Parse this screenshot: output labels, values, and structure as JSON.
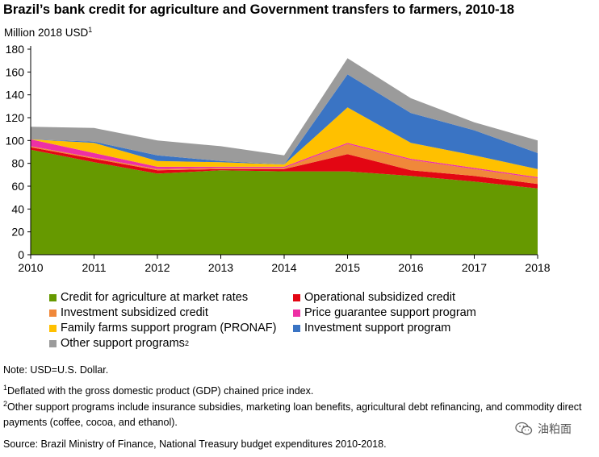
{
  "title": "Brazil’s bank credit for agriculture and Government transfers to farmers, 2010-18",
  "unit_label": "Million 2018 USD",
  "unit_sup": "1",
  "chart_data": {
    "type": "area",
    "stacked": true,
    "x": [
      2010,
      2011,
      2012,
      2013,
      2014,
      2015,
      2016,
      2017,
      2018
    ],
    "ylim": [
      0,
      180
    ],
    "yticks": [
      0,
      20,
      40,
      60,
      80,
      100,
      120,
      140,
      160,
      180
    ],
    "series": [
      {
        "name": "Credit for agriculture at market rates",
        "color": "#669900",
        "values": [
          92,
          81,
          71,
          74,
          73,
          73,
          69,
          64,
          58
        ]
      },
      {
        "name": "Operational subsidized credit",
        "color": "#e30613",
        "values": [
          2,
          3,
          3,
          1,
          2,
          15,
          5,
          5,
          4
        ]
      },
      {
        "name": "Investment subsidized credit",
        "color": "#f0883a",
        "values": [
          1,
          1,
          1,
          1,
          1,
          9,
          9,
          6,
          5
        ]
      },
      {
        "name": "Price guarantee support program",
        "color": "#ee2fa5",
        "values": [
          6,
          4,
          2,
          1,
          1,
          1,
          1,
          1,
          1
        ]
      },
      {
        "name": "Family farms support program (PRONAF)",
        "color": "#ffc000",
        "values": [
          0,
          9,
          5,
          4,
          2,
          31,
          14,
          11,
          7
        ]
      },
      {
        "name": "Investment support program",
        "color": "#3a74c4",
        "values": [
          0,
          1,
          5,
          1,
          0,
          29,
          26,
          22,
          14
        ]
      },
      {
        "name": "Other support programs",
        "sup": "2",
        "color": "#9b9b9b",
        "values": [
          11,
          12,
          13,
          13,
          8,
          14,
          13,
          7,
          11
        ]
      }
    ]
  },
  "notes": {
    "note": "Note: USD=U.S. Dollar.",
    "fn1_mark": "1",
    "fn1": "Deflated with the gross domestic product (GDP) chained price index.",
    "fn2_mark": "2",
    "fn2": "Other support programs include insurance subsidies, marketing loan benefits, agricultural debt refinancing, and commodity direct payments (coffee, cocoa, and ethanol).",
    "source": "Source: Brazil Ministry of Finance, National Treasury budget expenditures 2010-2018."
  },
  "brand": {
    "label": "油粕面",
    "icon": "wechat-icon"
  }
}
